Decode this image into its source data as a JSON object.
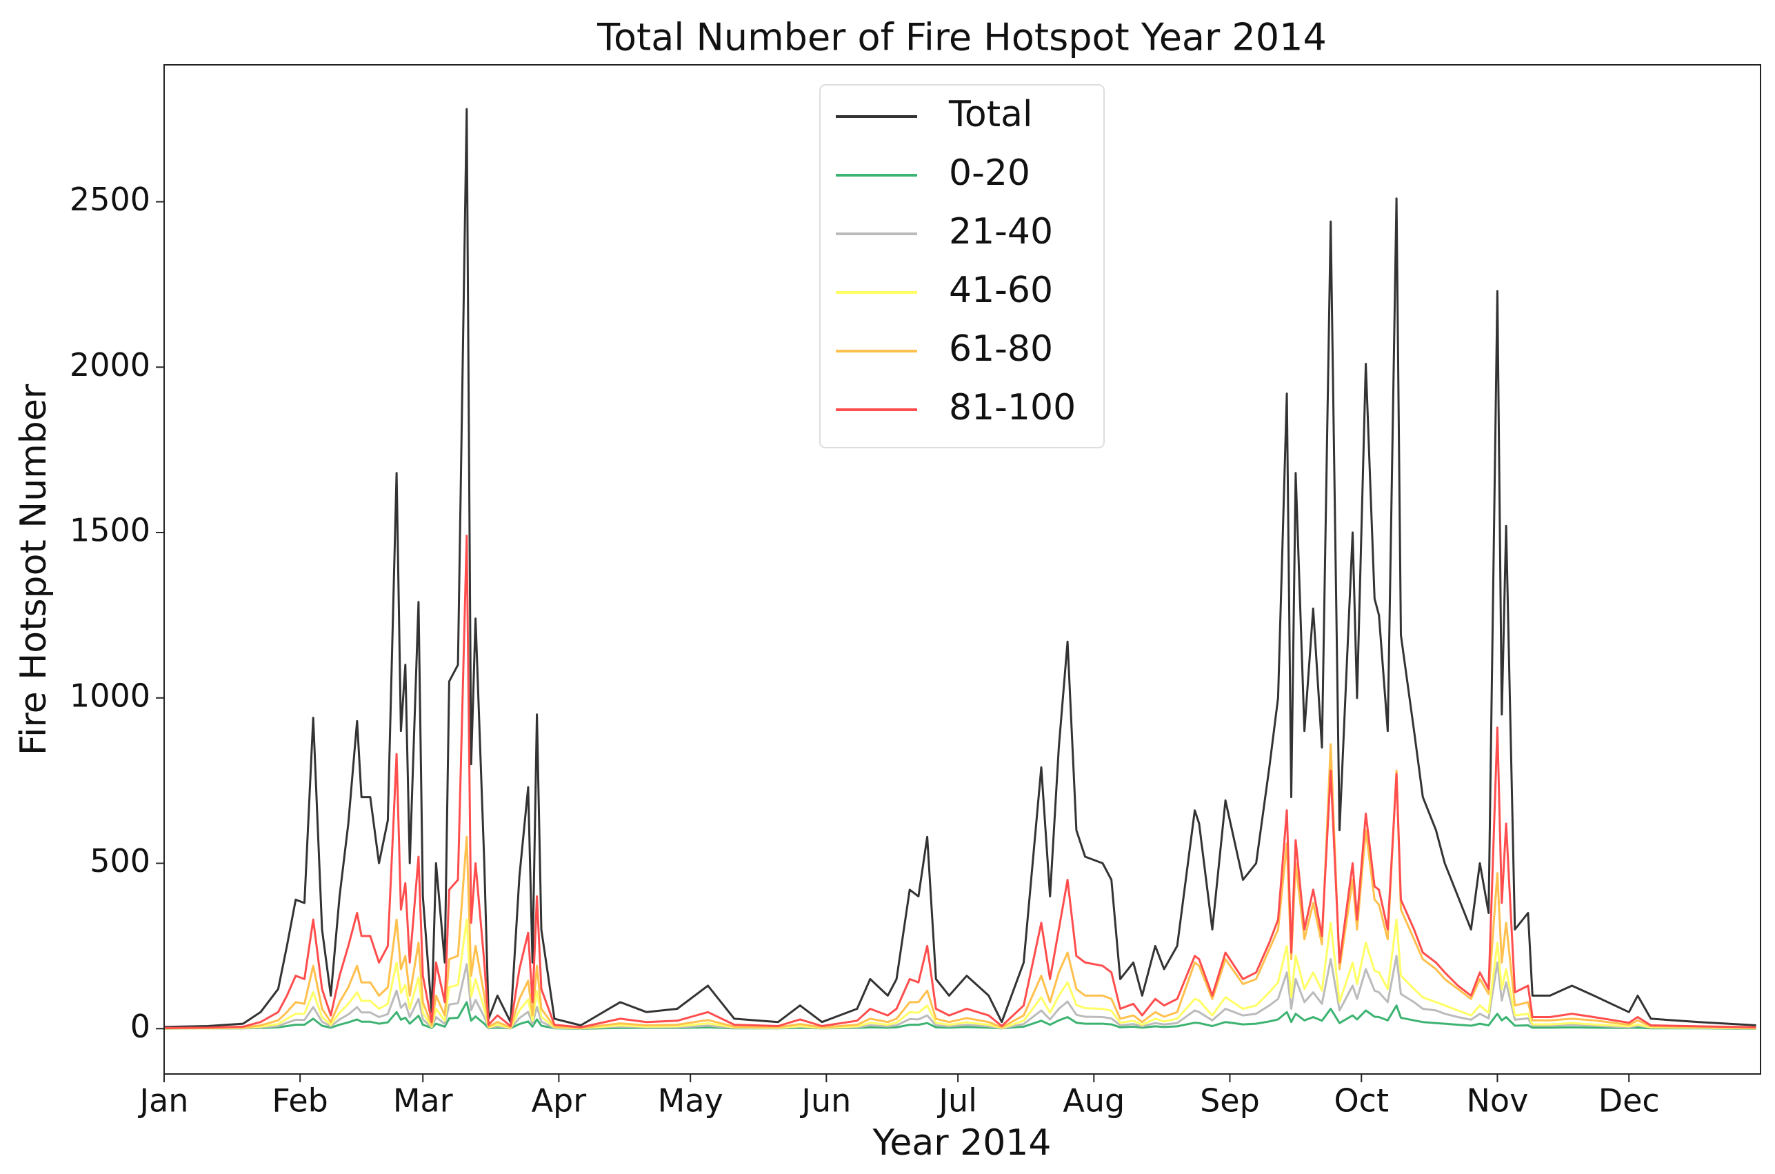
{
  "chart_data": {
    "type": "line",
    "title": "Total Number of Fire Hotspot Year 2014",
    "xlabel": "Year 2014",
    "ylabel": "Fire Hotspot Number",
    "legend": "upper center",
    "grid": false,
    "xlim": [
      0,
      364
    ],
    "ylim": [
      -137,
      2914
    ],
    "yticks": [
      0,
      500,
      1000,
      1500,
      2000,
      2500
    ],
    "xticks": [
      {
        "value": 0,
        "label": "Jan"
      },
      {
        "value": 31,
        "label": "Feb"
      },
      {
        "value": 59,
        "label": "Mar"
      },
      {
        "value": 90,
        "label": "Apr"
      },
      {
        "value": 120,
        "label": "May"
      },
      {
        "value": 151,
        "label": "Jun"
      },
      {
        "value": 181,
        "label": "Jul"
      },
      {
        "value": 212,
        "label": "Aug"
      },
      {
        "value": 243,
        "label": "Sep"
      },
      {
        "value": 273,
        "label": "Oct"
      },
      {
        "value": 304,
        "label": "Nov"
      },
      {
        "value": 334,
        "label": "Dec"
      }
    ],
    "x": [
      0,
      10,
      18,
      22,
      26,
      28,
      30,
      32,
      34,
      36,
      38,
      40,
      42,
      44,
      45,
      47,
      49,
      51,
      53,
      54,
      55,
      56,
      58,
      59,
      61,
      62,
      64,
      65,
      67,
      69,
      70,
      71,
      73,
      74,
      76,
      79,
      81,
      83,
      84,
      85,
      86,
      89,
      95,
      104,
      110,
      117,
      124,
      130,
      140,
      145,
      150,
      158,
      161,
      165,
      167,
      170,
      172,
      174,
      176,
      179,
      183,
      188,
      191,
      196,
      200,
      202,
      204,
      206,
      208,
      210,
      214,
      216,
      218,
      221,
      223,
      226,
      228,
      231,
      235,
      236,
      239,
      242,
      246,
      249,
      252,
      254,
      256,
      257,
      258,
      260,
      262,
      264,
      266,
      268,
      271,
      272,
      274,
      276,
      277,
      279,
      281,
      282,
      285,
      287,
      290,
      292,
      295,
      298,
      300,
      302,
      304,
      305,
      306,
      308,
      311,
      312,
      316,
      321,
      326,
      334,
      336,
      339,
      350,
      363
    ],
    "series": [
      {
        "name": "Total",
        "color": "#333333",
        "values": [
          5,
          8,
          15,
          50,
          120,
          250,
          390,
          380,
          940,
          300,
          100,
          400,
          620,
          930,
          700,
          700,
          500,
          630,
          1680,
          900,
          1100,
          500,
          1290,
          400,
          50,
          500,
          200,
          1050,
          1100,
          2780,
          800,
          1240,
          500,
          30,
          100,
          20,
          460,
          730,
          200,
          950,
          300,
          30,
          10,
          80,
          50,
          60,
          130,
          30,
          20,
          70,
          20,
          60,
          150,
          100,
          150,
          420,
          400,
          580,
          150,
          100,
          160,
          100,
          20,
          200,
          790,
          400,
          850,
          1170,
          600,
          520,
          500,
          450,
          150,
          200,
          100,
          250,
          180,
          250,
          660,
          620,
          300,
          690,
          450,
          500,
          790,
          1000,
          1920,
          700,
          1680,
          900,
          1270,
          850,
          2440,
          600,
          1500,
          1000,
          2010,
          1300,
          1250,
          900,
          2510,
          1190,
          900,
          700,
          600,
          500,
          400,
          300,
          500,
          350,
          2230,
          950,
          1520,
          300,
          350,
          100,
          100,
          130,
          100,
          50,
          100,
          30,
          20,
          10
        ]
      },
      {
        "name": "0-20",
        "color": "#3cb371",
        "values": [
          0,
          1,
          1,
          2,
          4,
          8,
          12,
          12,
          30,
          9,
          3,
          12,
          19,
          28,
          21,
          21,
          15,
          19,
          50,
          27,
          33,
          15,
          39,
          12,
          2,
          15,
          6,
          31,
          33,
          80,
          24,
          37,
          15,
          1,
          3,
          1,
          14,
          22,
          6,
          28,
          9,
          1,
          0,
          2,
          2,
          2,
          4,
          1,
          1,
          2,
          1,
          2,
          4,
          3,
          4,
          12,
          12,
          17,
          4,
          3,
          5,
          3,
          1,
          6,
          24,
          12,
          25,
          35,
          18,
          15,
          15,
          13,
          4,
          6,
          3,
          7,
          5,
          7,
          18,
          17,
          8,
          20,
          13,
          15,
          22,
          28,
          50,
          20,
          45,
          25,
          35,
          24,
          60,
          17,
          40,
          28,
          55,
          36,
          35,
          25,
          70,
          33,
          25,
          20,
          17,
          15,
          12,
          9,
          15,
          10,
          45,
          25,
          35,
          9,
          10,
          3,
          3,
          4,
          3,
          2,
          3,
          1,
          1,
          0
        ]
      },
      {
        "name": "21-40",
        "color": "#bbbbbb",
        "values": [
          1,
          1,
          1,
          4,
          8,
          18,
          27,
          26,
          65,
          21,
          7,
          28,
          43,
          65,
          49,
          49,
          35,
          44,
          115,
          63,
          77,
          35,
          90,
          28,
          4,
          35,
          14,
          73,
          77,
          195,
          56,
          87,
          35,
          2,
          7,
          1,
          32,
          51,
          14,
          66,
          21,
          2,
          1,
          6,
          4,
          4,
          9,
          2,
          1,
          5,
          1,
          4,
          10,
          7,
          10,
          29,
          28,
          40,
          10,
          7,
          11,
          7,
          1,
          14,
          55,
          28,
          60,
          82,
          42,
          36,
          35,
          31,
          10,
          14,
          7,
          17,
          13,
          17,
          55,
          50,
          25,
          60,
          40,
          45,
          70,
          90,
          170,
          60,
          150,
          80,
          110,
          75,
          210,
          55,
          130,
          90,
          180,
          115,
          110,
          80,
          220,
          105,
          80,
          60,
          55,
          45,
          35,
          27,
          45,
          31,
          200,
          85,
          140,
          27,
          31,
          9,
          9,
          12,
          9,
          4,
          9,
          3,
          2,
          1
        ]
      },
      {
        "name": "41-60",
        "color": "#ffff66",
        "values": [
          1,
          1,
          2,
          6,
          14,
          30,
          45,
          45,
          110,
          35,
          12,
          48,
          75,
          110,
          84,
          84,
          60,
          75,
          200,
          108,
          132,
          60,
          155,
          48,
          6,
          60,
          24,
          126,
          132,
          330,
          96,
          150,
          60,
          4,
          12,
          2,
          55,
          88,
          24,
          114,
          36,
          4,
          1,
          10,
          6,
          7,
          16,
          4,
          2,
          8,
          2,
          7,
          18,
          12,
          18,
          50,
          48,
          70,
          18,
          12,
          19,
          12,
          2,
          24,
          95,
          48,
          100,
          140,
          72,
          62,
          60,
          54,
          18,
          24,
          12,
          30,
          22,
          30,
          90,
          85,
          40,
          95,
          60,
          70,
          110,
          140,
          250,
          95,
          220,
          120,
          170,
          115,
          320,
          80,
          200,
          135,
          260,
          175,
          170,
          120,
          330,
          160,
          120,
          95,
          80,
          70,
          55,
          40,
          70,
          48,
          260,
          120,
          180,
          40,
          45,
          13,
          13,
          17,
          13,
          7,
          13,
          4,
          3,
          1
        ]
      },
      {
        "name": "61-80",
        "color": "#ffc04d",
        "values": [
          1,
          2,
          3,
          10,
          25,
          50,
          80,
          75,
          190,
          60,
          20,
          80,
          125,
          190,
          140,
          140,
          100,
          125,
          330,
          180,
          220,
          100,
          260,
          80,
          10,
          100,
          40,
          210,
          220,
          580,
          160,
          250,
          100,
          6,
          20,
          4,
          90,
          145,
          40,
          190,
          60,
          6,
          2,
          16,
          10,
          12,
          26,
          6,
          4,
          14,
          4,
          12,
          30,
          20,
          30,
          80,
          80,
          115,
          30,
          20,
          32,
          20,
          4,
          40,
          160,
          80,
          170,
          230,
          120,
          100,
          100,
          90,
          30,
          40,
          20,
          50,
          36,
          50,
          200,
          190,
          90,
          210,
          135,
          150,
          240,
          300,
          560,
          210,
          500,
          270,
          380,
          255,
          860,
          180,
          450,
          300,
          600,
          390,
          375,
          270,
          780,
          360,
          270,
          210,
          180,
          150,
          120,
          90,
          150,
          105,
          470,
          200,
          320,
          70,
          80,
          25,
          25,
          30,
          25,
          12,
          25,
          7,
          5,
          2
        ]
      },
      {
        "name": "81-100",
        "color": "#ff4d4d",
        "values": [
          2,
          3,
          6,
          20,
          50,
          100,
          160,
          150,
          330,
          120,
          40,
          160,
          250,
          350,
          280,
          280,
          200,
          250,
          830,
          360,
          440,
          200,
          520,
          160,
          20,
          200,
          80,
          420,
          450,
          1490,
          320,
          500,
          200,
          12,
          40,
          8,
          180,
          290,
          80,
          400,
          120,
          12,
          4,
          30,
          20,
          24,
          50,
          12,
          8,
          28,
          8,
          24,
          60,
          40,
          60,
          150,
          140,
          250,
          60,
          40,
          60,
          40,
          8,
          70,
          320,
          150,
          300,
          450,
          220,
          200,
          190,
          170,
          60,
          75,
          40,
          90,
          70,
          90,
          220,
          210,
          100,
          230,
          150,
          170,
          260,
          330,
          660,
          230,
          570,
          300,
          420,
          280,
          780,
          200,
          500,
          330,
          650,
          430,
          420,
          300,
          770,
          390,
          300,
          230,
          200,
          170,
          130,
          100,
          170,
          120,
          910,
          380,
          620,
          110,
          130,
          35,
          35,
          45,
          35,
          18,
          35,
          10,
          7,
          4
        ]
      }
    ]
  }
}
